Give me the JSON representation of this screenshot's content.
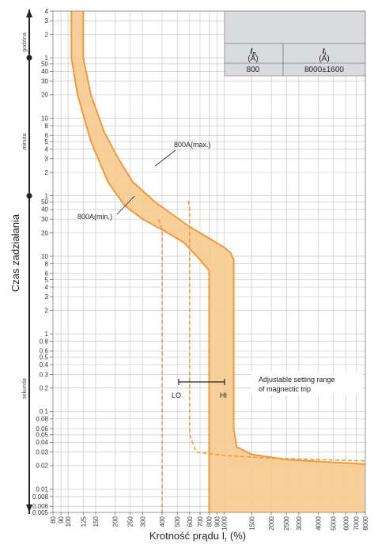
{
  "chart_data": {
    "type": "line",
    "title": "",
    "xlabel": "Krotność prądu I",
    "xlabel_sub": "r",
    "xlabel_unit": "(%)",
    "ylabel": "Czas zadziałania",
    "x_scale": "log",
    "y_scale": "log",
    "xlim": [
      80,
      8000
    ],
    "ylim_seconds": [
      0.005,
      14400
    ],
    "grid": true,
    "x_ticks": [
      "80",
      "90",
      "100",
      "125",
      "150",
      "200",
      "250",
      "300",
      "400",
      "500",
      "600",
      "700",
      "800",
      "900",
      "1000",
      "1500",
      "2000",
      "2500",
      "3000",
      "4000",
      "5000",
      "6000",
      "7000",
      "8000"
    ],
    "y_ticks": {
      "seconds": [
        "0.005",
        "0.006",
        "0.008",
        "0.01",
        "0.02",
        "0.03",
        "0.04",
        "0.05",
        "0.06",
        "0.08",
        "0.1",
        "0.2",
        "0.3",
        "0.4",
        "0.5",
        "0.6",
        "0.8",
        "1",
        "2",
        "3",
        "4",
        "5",
        "6",
        "8",
        "10",
        "20",
        "30",
        "40",
        "50"
      ],
      "minutes": [
        "1",
        "2",
        "3",
        "4",
        "5",
        "6",
        "8",
        "10",
        "20",
        "30",
        "40",
        "50"
      ],
      "hours": [
        "1",
        "2",
        "3",
        "4"
      ]
    },
    "y_unit_labels": [
      "sekunda",
      "minuta",
      "godzina"
    ],
    "series": [
      {
        "name": "800A(max.)",
        "color": "#f0a04a",
        "points": [
          [
            125,
            14400
          ],
          [
            125,
            3600
          ],
          [
            140,
            1200
          ],
          [
            170,
            400
          ],
          [
            210,
            180
          ],
          [
            260,
            90
          ],
          [
            360,
            50
          ],
          [
            470,
            34
          ],
          [
            600,
            24
          ],
          [
            800,
            17
          ],
          [
            1000,
            13
          ],
          [
            1100,
            11
          ],
          [
            1150,
            9
          ],
          [
            1150,
            0.06
          ],
          [
            1200,
            0.035
          ],
          [
            1500,
            0.028
          ],
          [
            2500,
            0.024
          ],
          [
            5000,
            0.022
          ],
          [
            8000,
            0.021
          ]
        ]
      },
      {
        "name": "800A(min.)",
        "color": "#f0a04a",
        "points": [
          [
            105,
            14400
          ],
          [
            105,
            3600
          ],
          [
            115,
            1200
          ],
          [
            140,
            300
          ],
          [
            180,
            90
          ],
          [
            230,
            45
          ],
          [
            300,
            30
          ],
          [
            400,
            22
          ],
          [
            550,
            15
          ],
          [
            700,
            9
          ],
          [
            800,
            6.5
          ],
          [
            800,
            0.005
          ]
        ]
      }
    ],
    "dashed_curves": [
      {
        "points": [
          [
            380,
            30
          ],
          [
            400,
            22
          ],
          [
            400,
            0.005
          ]
        ]
      },
      {
        "points": [
          [
            590,
            52
          ],
          [
            600,
            40
          ],
          [
            600,
            0.05
          ],
          [
            660,
            0.03
          ],
          [
            1000,
            0.027
          ],
          [
            2000,
            0.025
          ],
          [
            8000,
            0.023
          ]
        ]
      }
    ],
    "annotations": {
      "max_label": "800A(max.)",
      "min_label": "800A(min.)",
      "lo": "LO",
      "hi": "HI",
      "range_note_line1": "Adjustable setting range",
      "range_note_line2": "of magnectic trip"
    },
    "table": {
      "header1_main": "I",
      "header1_sub": "n",
      "header1_unit": "(A)",
      "header2_main": "I",
      "header2_sub": "i",
      "header2_unit": "(A)",
      "value1": "800",
      "value2": "8000±1600"
    },
    "colors": {
      "fill": "#f7c98e",
      "stroke": "#ee9a3c",
      "grid": "#c8c8c8",
      "axis": "#222222",
      "table_bg": "#d9dbde"
    }
  }
}
